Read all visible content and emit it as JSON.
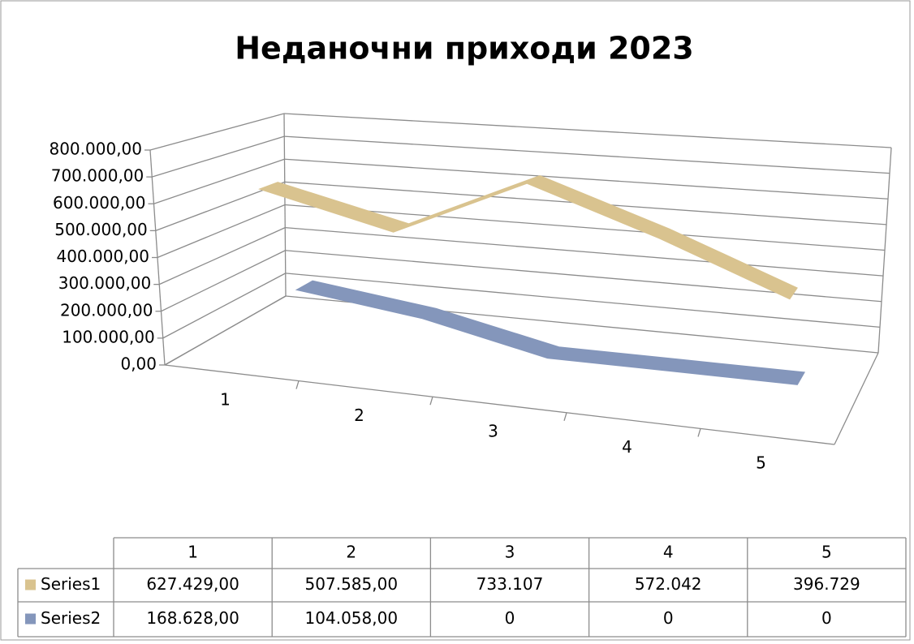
{
  "chart_data": {
    "type": "line3d",
    "title": "Неданочни приходи 2023",
    "categories": [
      "1",
      "2",
      "3",
      "4",
      "5"
    ],
    "series": [
      {
        "name": "Series1",
        "color": "#d9c38f",
        "values": [
          627429,
          507585,
          733107,
          572042,
          396729
        ],
        "value_labels": [
          "627.429,00",
          "507.585,00",
          "733.107",
          "572.042",
          "396.729"
        ]
      },
      {
        "name": "Series2",
        "color": "#8496bb",
        "values": [
          168628,
          104058,
          0,
          0,
          0
        ],
        "value_labels": [
          "168.628,00",
          "104.058,00",
          "0",
          "0",
          "0"
        ]
      }
    ],
    "ylim": [
      0,
      800000
    ],
    "yticks": [
      {
        "value": 0,
        "label": "0,00"
      },
      {
        "value": 100000,
        "label": "100.000,00"
      },
      {
        "value": 200000,
        "label": "200.000,00"
      },
      {
        "value": 300000,
        "label": "300.000,00"
      },
      {
        "value": 400000,
        "label": "400.000,00"
      },
      {
        "value": 500000,
        "label": "500.000,00"
      },
      {
        "value": 600000,
        "label": "600.000,00"
      },
      {
        "value": 700000,
        "label": "700.000,00"
      },
      {
        "value": 800000,
        "label": "800.000,00"
      }
    ],
    "grid": true,
    "data_table": true
  }
}
